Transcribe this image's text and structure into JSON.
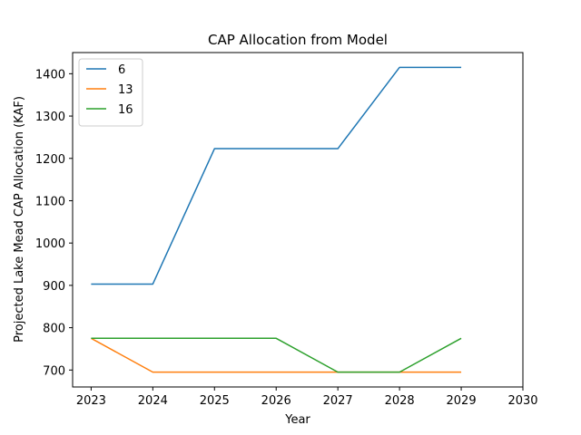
{
  "chart_data": {
    "type": "line",
    "title": "CAP Allocation from Model",
    "xlabel": "Year",
    "ylabel": "Projected Lake Mead CAP Allocation (KAF)",
    "x": [
      2023,
      2024,
      2025,
      2026,
      2027,
      2028,
      2029
    ],
    "xlim": [
      2022.7,
      2030
    ],
    "ylim": [
      660,
      1450
    ],
    "xticks": [
      2023,
      2024,
      2025,
      2026,
      2027,
      2028,
      2029,
      2030
    ],
    "yticks": [
      700,
      800,
      900,
      1000,
      1100,
      1200,
      1300,
      1400
    ],
    "grid": false,
    "legend_position": "top-left",
    "series": [
      {
        "name": "6",
        "color": "#1f77b4",
        "values": [
          903,
          903,
          1223,
          1223,
          1223,
          1415,
          1415
        ]
      },
      {
        "name": "13",
        "color": "#ff7f0e",
        "values": [
          775,
          695,
          695,
          695,
          695,
          695,
          695
        ]
      },
      {
        "name": "16",
        "color": "#2ca02c",
        "values": [
          775,
          775,
          775,
          775,
          695,
          695,
          775
        ]
      }
    ]
  }
}
